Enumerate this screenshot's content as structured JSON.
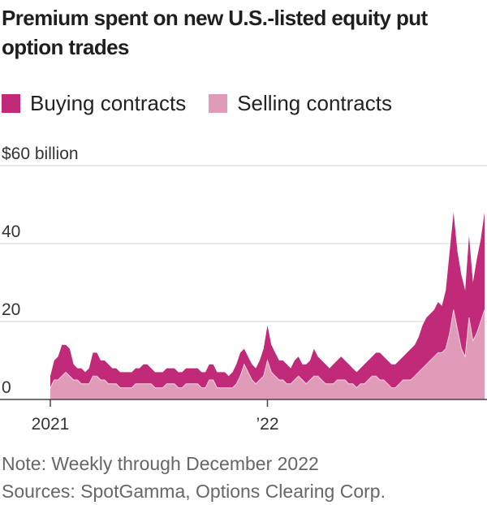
{
  "chart_data": {
    "type": "area",
    "title": "Premium spent on new U.S.-listed equity put option trades",
    "y_unit_label": "$60 billion",
    "ylim": [
      0,
      60
    ],
    "yticks": [
      {
        "value": 60,
        "label": "$60 billion"
      },
      {
        "value": 40,
        "label": "40"
      },
      {
        "value": 20,
        "label": "20"
      },
      {
        "value": 0,
        "label": "0"
      }
    ],
    "xticks": [
      {
        "index": 0,
        "label": "2021"
      },
      {
        "index": 56,
        "label": "’22"
      }
    ],
    "x_count": 113,
    "legend": [
      {
        "name": "Buying contracts",
        "color": "#c02a79"
      },
      {
        "name": "Selling contracts",
        "color": "#e09bb8"
      }
    ],
    "series": [
      {
        "name": "Buying contracts",
        "color": "#c02a79",
        "values": [
          6,
          10,
          11,
          14,
          14,
          13,
          9,
          8,
          8,
          7,
          8,
          12,
          12,
          10,
          10,
          9,
          8,
          8,
          7,
          7,
          7,
          7,
          8,
          8,
          9,
          9,
          8,
          7,
          7,
          7,
          8,
          8,
          8,
          7,
          7,
          8,
          8,
          8,
          8,
          7,
          7,
          9,
          9,
          7,
          7,
          7,
          6,
          7,
          9,
          12,
          13,
          11,
          9,
          8,
          10,
          13,
          19,
          14,
          12,
          10,
          10,
          9,
          8,
          10,
          11,
          9,
          9,
          10,
          13,
          11,
          10,
          9,
          8,
          9,
          10,
          11,
          10,
          9,
          8,
          7,
          8,
          9,
          10,
          11,
          12,
          12,
          11,
          10,
          9,
          9,
          10,
          11,
          12,
          13,
          14,
          16,
          19,
          21,
          22,
          23,
          25,
          24,
          28,
          38,
          48,
          38,
          32,
          28,
          42,
          30,
          36,
          41,
          48
        ]
      },
      {
        "name": "Selling contracts",
        "color": "#e09bb8",
        "values": [
          3,
          5,
          5,
          6,
          7,
          6,
          5,
          5,
          4,
          4,
          4,
          6,
          6,
          5,
          5,
          4,
          4,
          4,
          3,
          3,
          3,
          3,
          4,
          4,
          4,
          4,
          4,
          3,
          3,
          3,
          4,
          4,
          4,
          3,
          3,
          4,
          4,
          4,
          4,
          3,
          3,
          5,
          5,
          3,
          3,
          3,
          3,
          3,
          4,
          6,
          9,
          7,
          5,
          4,
          5,
          6,
          10,
          7,
          6,
          5,
          5,
          4,
          4,
          5,
          6,
          5,
          4,
          5,
          6,
          6,
          5,
          4,
          4,
          4,
          5,
          5,
          5,
          4,
          4,
          3,
          4,
          4,
          5,
          6,
          6,
          5,
          5,
          4,
          3,
          3,
          4,
          5,
          5,
          5,
          6,
          7,
          8,
          9,
          10,
          11,
          12,
          12,
          13,
          17,
          23,
          18,
          13,
          11,
          21,
          15,
          17,
          20,
          23
        ]
      }
    ]
  },
  "footer": {
    "note": "Note: Weekly through December 2022",
    "sources": "Sources: SpotGamma, Options Clearing Corp."
  }
}
